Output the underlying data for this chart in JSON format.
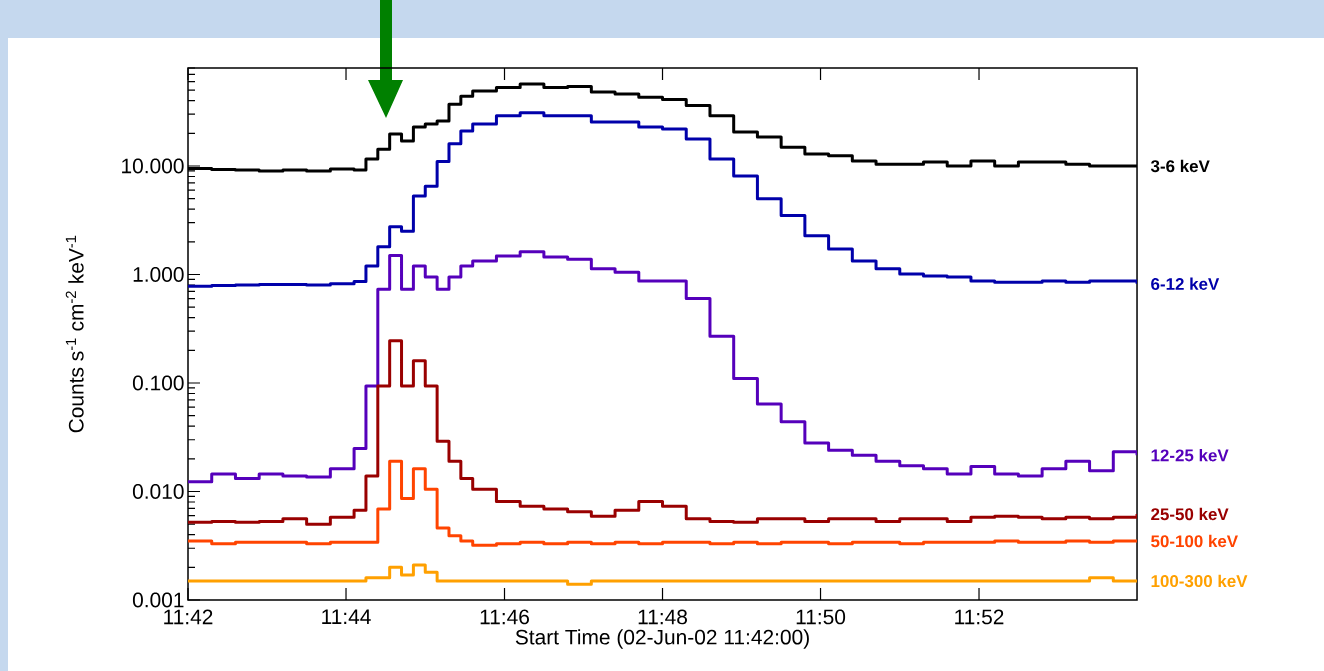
{
  "chart_data": {
    "type": "step",
    "xlabel": "Start Time (02-Jun-02 11:42:00)",
    "ylabel": "Counts s$^{-1}$ cm$^{-2}$ keV$^{-1}$",
    "x": [
      11.7,
      11.705,
      11.71,
      11.715,
      11.72,
      11.725,
      11.73,
      11.735,
      11.7375,
      11.74,
      11.7425,
      11.745,
      11.7475,
      11.75,
      11.7525,
      11.755,
      11.7575,
      11.76,
      11.765,
      11.77,
      11.775,
      11.78,
      11.785,
      11.79,
      11.795,
      11.8,
      11.805,
      11.81,
      11.815,
      11.82,
      11.825,
      11.83,
      11.835,
      11.84,
      11.845,
      11.85,
      11.855,
      11.86,
      11.865,
      11.87,
      11.875,
      11.88,
      11.885,
      11.89,
      11.895,
      11.9
    ],
    "series": [
      {
        "name": "3-6 keV",
        "color": "#000000",
        "values": [
          9.5,
          9.3,
          9.2,
          9.0,
          9.2,
          9.0,
          9.4,
          9.2,
          11.6,
          14.3,
          19.7,
          17,
          22.9,
          24.4,
          26,
          37,
          44,
          49,
          53,
          57,
          53,
          54,
          48,
          46,
          43,
          41,
          36,
          29,
          20.6,
          18.5,
          14.9,
          12.9,
          12.4,
          11.1,
          10.4,
          10.4,
          10.9,
          10,
          11.1,
          10,
          10.9,
          10.9,
          10.4,
          10,
          10,
          10
        ]
      },
      {
        "name": "6-12 keV",
        "color": "#0000aa",
        "values": [
          0.78,
          0.79,
          0.8,
          0.81,
          0.81,
          0.8,
          0.82,
          0.86,
          1.2,
          1.8,
          2.75,
          2.5,
          5.3,
          6.5,
          11,
          16,
          21,
          24.4,
          29,
          31,
          29,
          29,
          25.4,
          25.4,
          22.9,
          21.9,
          17.7,
          11.6,
          8.1,
          5.0,
          3.5,
          2.27,
          1.72,
          1.33,
          1.13,
          1.01,
          0.97,
          0.95,
          0.87,
          0.85,
          0.85,
          0.87,
          0.85,
          0.87,
          0.87,
          0.82
        ]
      },
      {
        "name": "12-25 keV",
        "color": "#5500bb",
        "values": [
          0.0123,
          0.0145,
          0.0132,
          0.0145,
          0.0139,
          0.0136,
          0.0162,
          0.0249,
          0.094,
          0.73,
          1.5,
          0.73,
          1.2,
          0.95,
          0.73,
          0.95,
          1.2,
          1.33,
          1.48,
          1.62,
          1.45,
          1.38,
          1.13,
          1.05,
          0.87,
          0.87,
          0.6,
          0.27,
          0.11,
          0.064,
          0.044,
          0.028,
          0.024,
          0.0216,
          0.019,
          0.0173,
          0.0162,
          0.0145,
          0.017,
          0.0145,
          0.0139,
          0.0162,
          0.019,
          0.0155,
          0.0233,
          0.0216
        ]
      },
      {
        "name": "25-50 keV",
        "color": "#990000",
        "values": [
          0.0052,
          0.0053,
          0.0052,
          0.0053,
          0.0056,
          0.005,
          0.0058,
          0.0067,
          0.0139,
          0.094,
          0.245,
          0.094,
          0.16,
          0.094,
          0.029,
          0.019,
          0.0132,
          0.0105,
          0.0081,
          0.0073,
          0.0069,
          0.0065,
          0.0059,
          0.0067,
          0.0081,
          0.0073,
          0.0056,
          0.0053,
          0.0052,
          0.0056,
          0.0056,
          0.0053,
          0.0056,
          0.0056,
          0.0053,
          0.0056,
          0.0056,
          0.0053,
          0.0058,
          0.0059,
          0.0058,
          0.0056,
          0.0058,
          0.0056,
          0.0058,
          0.0062
        ]
      },
      {
        "name": "50-100 keV",
        "color": "#ff4400",
        "values": [
          0.0035,
          0.0033,
          0.0034,
          0.0034,
          0.0034,
          0.0033,
          0.0034,
          0.0034,
          0.0034,
          0.0069,
          0.019,
          0.0086,
          0.0162,
          0.0105,
          0.0046,
          0.0039,
          0.0035,
          0.0032,
          0.0033,
          0.0034,
          0.0033,
          0.0034,
          0.0033,
          0.0034,
          0.0033,
          0.0034,
          0.0034,
          0.0033,
          0.0034,
          0.0033,
          0.0034,
          0.0034,
          0.0033,
          0.0034,
          0.0034,
          0.0033,
          0.0034,
          0.0034,
          0.0034,
          0.0035,
          0.0034,
          0.0034,
          0.0035,
          0.0034,
          0.0035,
          0.0035
        ]
      },
      {
        "name": "100-300 keV",
        "color": "#ffa000",
        "values": [
          0.0015,
          0.0015,
          0.0015,
          0.0015,
          0.0015,
          0.0015,
          0.0015,
          0.0015,
          0.0016,
          0.0016,
          0.002,
          0.0017,
          0.0021,
          0.0018,
          0.0015,
          0.0015,
          0.0015,
          0.0015,
          0.0015,
          0.0015,
          0.0015,
          0.0014,
          0.0015,
          0.0015,
          0.0015,
          0.0015,
          0.0015,
          0.0015,
          0.0015,
          0.0015,
          0.0015,
          0.0015,
          0.0015,
          0.0015,
          0.0015,
          0.0015,
          0.0015,
          0.0015,
          0.0015,
          0.0015,
          0.0015,
          0.0015,
          0.0015,
          0.0016,
          0.0015,
          0.0015
        ]
      }
    ],
    "log": true,
    "legend": "right",
    "xlim": [
      11.7,
      11.9
    ],
    "xticks": [
      {
        "value": 11.7,
        "label": "11:42"
      },
      {
        "value": 11.7333,
        "label": "11:44"
      },
      {
        "value": 11.7667,
        "label": "11:46"
      },
      {
        "value": 11.8,
        "label": "11:48"
      },
      {
        "value": 11.8333,
        "label": "11:50"
      },
      {
        "value": 11.8667,
        "label": "11:52"
      }
    ],
    "ylim": [
      0.001,
      80
    ],
    "yticks": [
      0.001,
      {
        "value": 0.01,
        "label": "0.010"
      },
      {
        "value": 0.1,
        "label": "0.100"
      },
      {
        "value": 1,
        "label": "1.000"
      },
      {
        "value": 10,
        "label": "10.000"
      }
    ]
  }
}
